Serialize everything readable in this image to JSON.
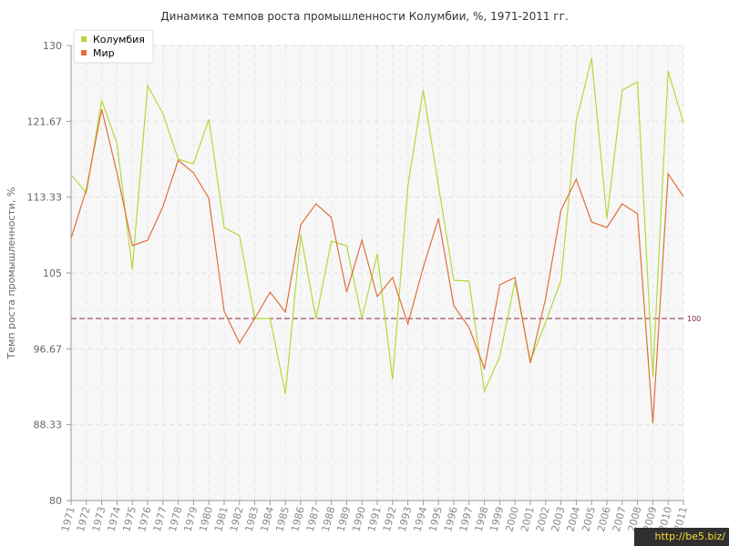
{
  "chart_data": {
    "type": "line",
    "title": "Динамика темпов роста промышленности Колумбии, %, 1971-2011 гг.",
    "ylabel": "Темп роста промышленности, %",
    "xlabel": "",
    "ylim": [
      80,
      130
    ],
    "yticks": [
      "80",
      "88.33",
      "96.67",
      "105",
      "113.33",
      "121.67",
      "130"
    ],
    "x": [
      "1971",
      "1972",
      "1973",
      "1974",
      "1975",
      "1976",
      "1977",
      "1978",
      "1979",
      "1980",
      "1981",
      "1982",
      "1983",
      "1984",
      "1985",
      "1986",
      "1987",
      "1988",
      "1989",
      "1990",
      "1991",
      "1992",
      "1993",
      "1994",
      "1995",
      "1996",
      "1997",
      "1998",
      "1999",
      "2000",
      "2001",
      "2002",
      "2003",
      "2004",
      "2005",
      "2006",
      "2007",
      "2008",
      "2009",
      "2010",
      "2011"
    ],
    "series": [
      {
        "name": "Колумбия",
        "color": "#b5d93b",
        "values": [
          115.8,
          113.8,
          124,
          119.2,
          105.4,
          125.6,
          122.5,
          117.5,
          117,
          121.9,
          110,
          109.1,
          100,
          100,
          91.7,
          109.2,
          100,
          108.5,
          108,
          100,
          107.1,
          93.3,
          114.6,
          125.1,
          114.6,
          104.2,
          104.1,
          92,
          95.8,
          104.1,
          95.3,
          99.6,
          104.2,
          121.7,
          128.6,
          111,
          125.1,
          126,
          93.6,
          127.2,
          121.5
        ]
      },
      {
        "name": "Мир",
        "color": "#e0703a",
        "values": [
          108.8,
          114.2,
          123,
          116,
          108,
          108.6,
          112.3,
          117.4,
          116,
          113.2,
          100.8,
          97.3,
          100,
          102.9,
          100.7,
          110.3,
          112.6,
          111.1,
          102.9,
          108.6,
          102.4,
          104.5,
          99.4,
          105.6,
          111,
          101.4,
          99,
          94.5,
          103.7,
          104.5,
          95.1,
          102.2,
          111.9,
          115.3,
          110.6,
          110,
          112.6,
          111.5,
          88.5,
          115.9,
          113.4
        ]
      }
    ],
    "reference_line": {
      "value": 100,
      "label": "100",
      "color": "#8b2535"
    },
    "grid": true,
    "legend": "top-left"
  },
  "watermark": "http://be5.biz/"
}
